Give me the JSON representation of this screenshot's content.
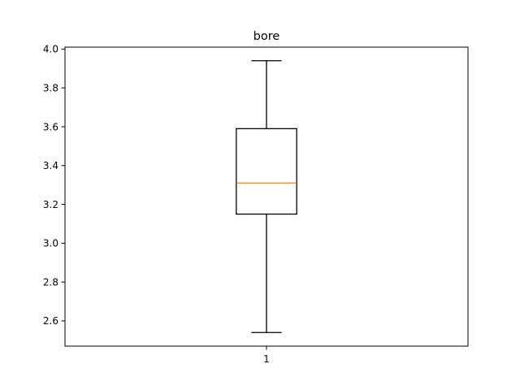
{
  "chart_data": {
    "type": "box",
    "title": "bore",
    "xlabel": "",
    "ylabel": "",
    "categories": [
      "1"
    ],
    "boxes": [
      {
        "category": "1",
        "whisker_low": 2.54,
        "q1": 3.15,
        "median": 3.31,
        "q3": 3.59,
        "whisker_high": 3.94
      }
    ],
    "ylim": [
      2.47,
      4.01
    ],
    "yticks": [
      2.6,
      2.8,
      3.0,
      3.2,
      3.4,
      3.6,
      3.8,
      4.0
    ],
    "ytick_labels": [
      "2.6",
      "2.8",
      "3.0",
      "3.2",
      "3.4",
      "3.6",
      "3.8",
      "4.0"
    ],
    "grid": false,
    "colors": {
      "box": "#000000",
      "median": "#ff7f0e",
      "axes": "#000000"
    }
  }
}
